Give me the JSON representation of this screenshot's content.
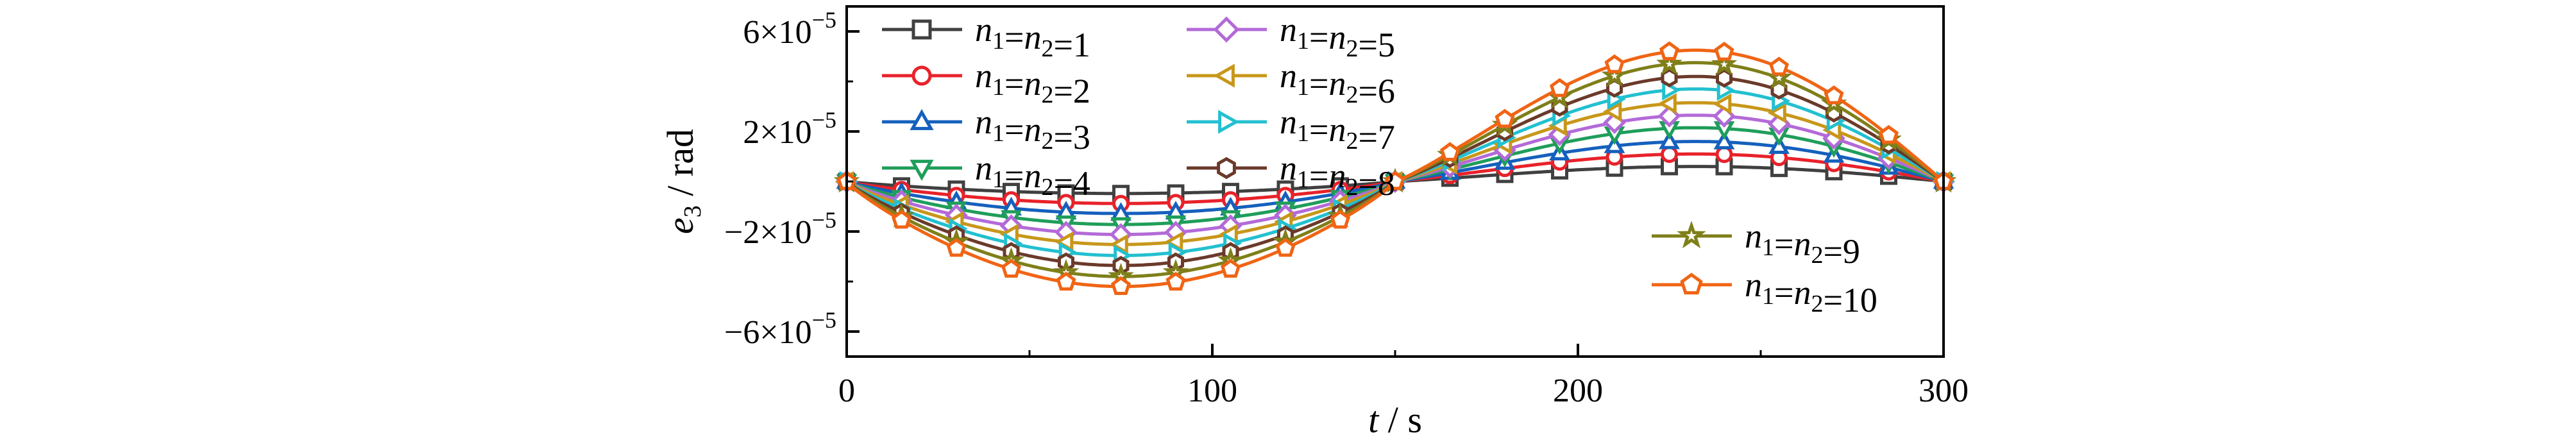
{
  "chart_data": {
    "type": "line",
    "xlabel": {
      "var": "t",
      "unit": "s"
    },
    "ylabel": {
      "var": "e",
      "sub": "3",
      "unit": "rad"
    },
    "xlim": [
      0,
      300
    ],
    "ylim": [
      -7e-05,
      7e-05
    ],
    "xticks": [
      0,
      100,
      200,
      300
    ],
    "xtick_labels": [
      "0",
      "100",
      "200",
      "300"
    ],
    "yticks": [
      6e-05,
      2e-05,
      -2e-05,
      -6e-05
    ],
    "ytick_labels": [
      {
        "mant": "6",
        "exp": "−5"
      },
      {
        "mant": "2",
        "exp": "−5"
      },
      {
        "mant": "−2",
        "exp": "−5"
      },
      {
        "mant": "−6",
        "exp": "−5"
      }
    ],
    "grid": false,
    "legend_position": "top-left and right",
    "series": [
      {
        "name": "n1=n2=1",
        "n": "1",
        "color": "#404040",
        "marker": "square",
        "amplitude": 6e-06
      },
      {
        "name": "n1=n2=2",
        "n": "2",
        "color": "#e8222a",
        "marker": "circle",
        "amplitude": 1.1e-05
      },
      {
        "name": "n1=n2=3",
        "n": "3",
        "color": "#1560bd",
        "marker": "triangle-up",
        "amplitude": 1.6e-05
      },
      {
        "name": "n1=n2=4",
        "n": "4",
        "color": "#1f9e5a",
        "marker": "triangle-down",
        "amplitude": 2.15e-05
      },
      {
        "name": "n1=n2=5",
        "n": "5",
        "color": "#b36ad8",
        "marker": "diamond",
        "amplitude": 2.65e-05
      },
      {
        "name": "n1=n2=6",
        "n": "6",
        "color": "#c8971a",
        "marker": "triangle-left",
        "amplitude": 3.15e-05
      },
      {
        "name": "n1=n2=7",
        "n": "7",
        "color": "#22c0d0",
        "marker": "triangle-right",
        "amplitude": 3.7e-05
      },
      {
        "name": "n1=n2=8",
        "n": "8",
        "color": "#6b3a2a",
        "marker": "hexagon",
        "amplitude": 4.2e-05
      },
      {
        "name": "n1=n2=9",
        "n": "9",
        "color": "#7f7f1a",
        "marker": "star",
        "amplitude": 4.75e-05
      },
      {
        "name": "n1=n2=10",
        "n": "10",
        "color": "#f06414",
        "marker": "pentagon",
        "amplitude": 5.25e-05
      }
    ],
    "x_marker_positions": [
      0,
      15,
      30,
      45,
      60,
      75,
      90,
      105,
      120,
      135,
      150,
      165,
      180,
      195,
      210,
      225,
      240,
      255,
      270,
      285,
      300
    ],
    "waveform": {
      "description": "e3(t) = -0.8*A*sin(pi*t/150) for t<150, A*sin(pi*(t-150)/150) for t>=150, slightly skewed",
      "neg_scale": 0.8
    }
  }
}
